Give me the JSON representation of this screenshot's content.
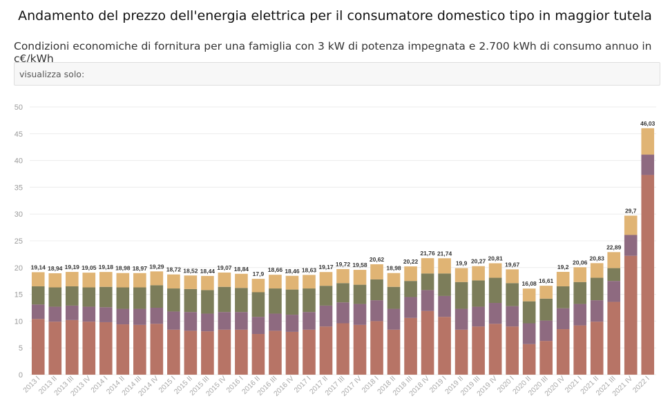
{
  "chart_data": {
    "type": "bar",
    "stacked": true,
    "title": "Andamento del prezzo dell'energia elettrica per il consumatore domestico tipo in maggior tutela",
    "subtitle": "Condizioni economiche di fornitura per una famiglia con 3 kW di potenza impegnata e 2.700 kWh di consumo annuo in c€/kWh",
    "filter_label": "visualizza solo:",
    "ylim": [
      0,
      50
    ],
    "yticks": [
      0,
      5,
      10,
      15,
      20,
      25,
      30,
      35,
      40,
      45,
      50
    ],
    "grid": true,
    "categories": [
      "2013 I",
      "2013 II",
      "2013 III",
      "2013 IV",
      "2014 I",
      "2014 II",
      "2014 III",
      "2014 IV",
      "2015 I",
      "2015 II",
      "2015 III",
      "2015 IV",
      "2016 I",
      "2016 II",
      "2016 III",
      "2016 IV",
      "2017 I",
      "2017 II",
      "2017 III",
      "2017 IV",
      "2018 I",
      "2018 II",
      "2018 III",
      "2018 IV",
      "2019 I",
      "2019 II",
      "2019 III",
      "2019 IV",
      "2020 I",
      "2020 II",
      "2020 III",
      "2020 IV",
      "2021 I",
      "2021 II",
      "2021 III",
      "2021 IV",
      "2022 I"
    ],
    "total_labels": [
      "19,14",
      "18,94",
      "19,19",
      "19,05",
      "19,18",
      "18,98",
      "18,97",
      "19,29",
      "18,72",
      "18,52",
      "18,44",
      "19,07",
      "18,84",
      "17,9",
      "18,66",
      "18,46",
      "18,63",
      "19,17",
      "19,72",
      "19,58",
      "20,62",
      "18,98",
      "20,22",
      "21,76",
      "21,74",
      "19,9",
      "20,27",
      "20,81",
      "19,67",
      "16,08",
      "16,61",
      "19,2",
      "20,06",
      "20,83",
      "22,89",
      "29,7",
      "46,03"
    ],
    "series": [
      {
        "color": "#b77466",
        "values": [
          10.4,
          9.9,
          10.2,
          9.9,
          9.8,
          9.4,
          9.3,
          9.5,
          8.4,
          8.2,
          8.1,
          8.4,
          8.4,
          7.6,
          8.2,
          8.0,
          8.4,
          9.0,
          9.6,
          9.3,
          10.0,
          8.4,
          10.6,
          11.9,
          10.8,
          8.4,
          9.0,
          9.5,
          9.0,
          5.7,
          6.3,
          8.5,
          9.2,
          9.9,
          13.6,
          22.2,
          37.3
        ]
      },
      {
        "color": "#8e6a80",
        "values": [
          2.7,
          2.8,
          2.7,
          2.8,
          2.8,
          2.9,
          3.0,
          3.0,
          3.4,
          3.5,
          3.3,
          3.3,
          3.3,
          3.2,
          3.2,
          3.2,
          3.3,
          3.9,
          3.9,
          3.9,
          3.9,
          3.9,
          3.9,
          3.9,
          3.9,
          3.9,
          3.7,
          3.9,
          3.8,
          3.9,
          3.8,
          3.9,
          4.0,
          4.0,
          3.9,
          3.9,
          3.8
        ]
      },
      {
        "color": "#7c7d5a",
        "values": [
          3.4,
          3.6,
          3.6,
          3.6,
          3.8,
          4.0,
          4.0,
          4.2,
          4.3,
          4.3,
          4.4,
          4.7,
          4.5,
          4.6,
          4.7,
          4.7,
          4.4,
          3.7,
          3.6,
          3.6,
          3.9,
          4.1,
          3.0,
          3.1,
          4.2,
          5.0,
          4.9,
          4.7,
          4.3,
          4.1,
          4.1,
          4.1,
          4.1,
          4.2,
          2.4,
          0.0,
          0.0
        ]
      },
      {
        "color": "#e0b474",
        "values": [
          2.64,
          2.64,
          2.69,
          2.75,
          2.78,
          2.68,
          2.67,
          2.59,
          2.62,
          2.52,
          2.64,
          2.67,
          2.64,
          2.5,
          2.56,
          2.56,
          2.53,
          2.57,
          2.62,
          2.78,
          2.82,
          2.58,
          2.72,
          2.86,
          2.84,
          2.6,
          2.67,
          2.71,
          2.57,
          2.38,
          2.41,
          2.7,
          2.76,
          2.73,
          2.99,
          3.6,
          4.93
        ]
      }
    ]
  }
}
